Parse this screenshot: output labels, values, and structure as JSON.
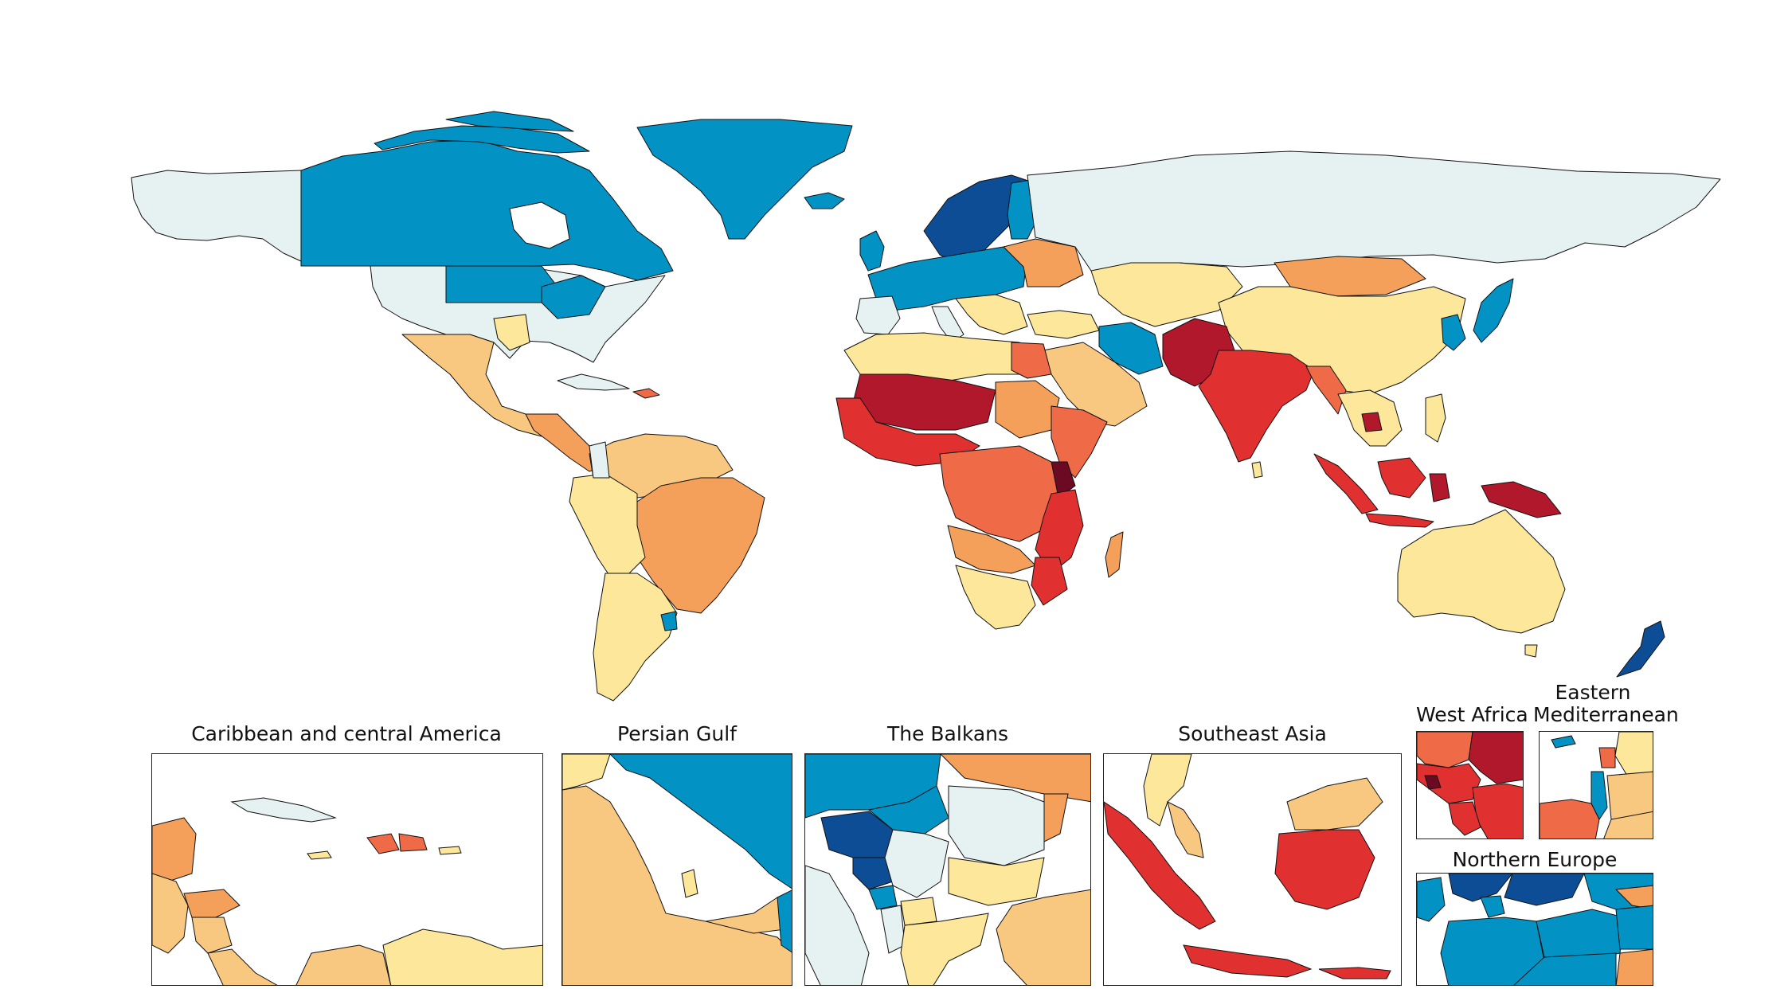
{
  "palette": {
    "dark_red": "#b2182b",
    "red": "#e03030",
    "red_orange": "#ef6a47",
    "orange": "#f4a05a",
    "light_orange": "#f8c880",
    "yellow": "#fce79a",
    "pale": "#e6f2f2",
    "blue": "#0392c4",
    "dark_blue": "#0c4d95",
    "very_dark": "#6b0a22"
  },
  "insets": {
    "caribbean": {
      "title": "Caribbean and central America"
    },
    "persian_gulf": {
      "title": "Persian Gulf"
    },
    "balkans": {
      "title": "The Balkans"
    },
    "southeast_asia": {
      "title": "Southeast Asia"
    },
    "west_africa": {
      "title": "West Africa"
    },
    "eastern_med": {
      "title_line1": "Eastern",
      "title_line2": "Mediterranean"
    },
    "northern_europe": {
      "title": "Northern Europe"
    }
  }
}
